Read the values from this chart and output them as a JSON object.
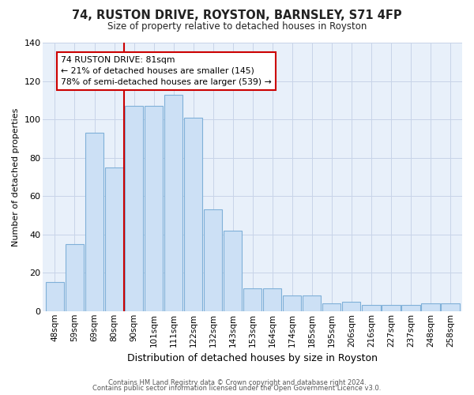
{
  "title": "74, RUSTON DRIVE, ROYSTON, BARNSLEY, S71 4FP",
  "subtitle": "Size of property relative to detached houses in Royston",
  "xlabel": "Distribution of detached houses by size in Royston",
  "ylabel": "Number of detached properties",
  "bar_labels": [
    "48sqm",
    "59sqm",
    "69sqm",
    "80sqm",
    "90sqm",
    "101sqm",
    "111sqm",
    "122sqm",
    "132sqm",
    "143sqm",
    "153sqm",
    "164sqm",
    "174sqm",
    "185sqm",
    "195sqm",
    "206sqm",
    "216sqm",
    "227sqm",
    "237sqm",
    "248sqm",
    "258sqm"
  ],
  "bar_values": [
    15,
    35,
    93,
    75,
    107,
    107,
    113,
    101,
    53,
    42,
    12,
    12,
    8,
    8,
    4,
    5,
    3,
    3,
    3,
    4,
    4
  ],
  "bar_color": "#cce0f5",
  "bar_edge_color": "#7fb0d8",
  "vline_x": 3.5,
  "vline_color": "#cc0000",
  "annotation_title": "74 RUSTON DRIVE: 81sqm",
  "annotation_line1": "← 21% of detached houses are smaller (145)",
  "annotation_line2": "78% of semi-detached houses are larger (539) →",
  "annotation_box_color": "#cc0000",
  "ylim": [
    0,
    140
  ],
  "yticks": [
    0,
    20,
    40,
    60,
    80,
    100,
    120,
    140
  ],
  "footer1": "Contains HM Land Registry data © Crown copyright and database right 2024.",
  "footer2": "Contains public sector information licensed under the Open Government Licence v3.0.",
  "fig_background": "#ffffff",
  "plot_background": "#e8f0fa"
}
